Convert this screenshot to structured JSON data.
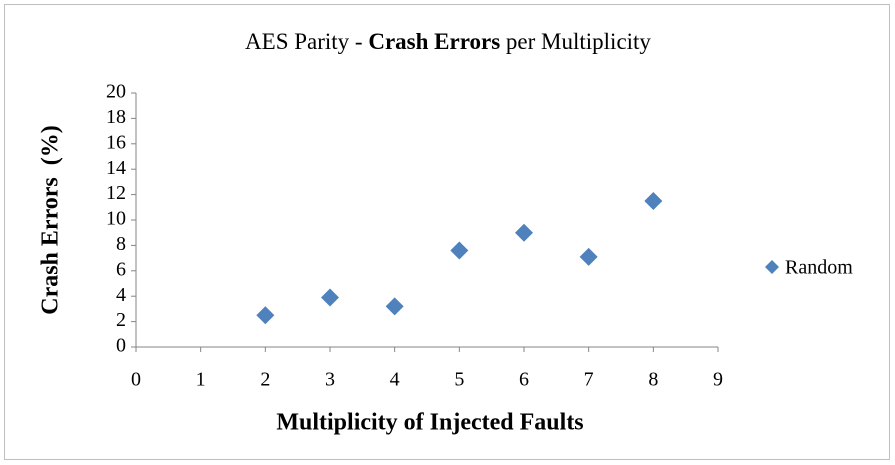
{
  "chart_data": {
    "type": "scatter",
    "title": [
      "AES Parity - ",
      "Crash Errors",
      " per Multiplicity"
    ],
    "x_label": "Multiplicity of Injected Faults",
    "y_label": "Crash Errors  (%)",
    "series": [
      {
        "name": "Random",
        "color": "#4f81bd",
        "x": [
          2,
          3,
          4,
          5,
          6,
          7,
          8
        ],
        "values": [
          2.5,
          3.9,
          3.2,
          7.6,
          9.0,
          7.1,
          11.5
        ]
      }
    ],
    "xlim": [
      0,
      9
    ],
    "xticks": [
      0,
      1,
      2,
      3,
      4,
      5,
      6,
      7,
      8,
      9
    ],
    "ylim": [
      0,
      20
    ],
    "yticks": [
      0,
      2,
      4,
      6,
      8,
      10,
      12,
      14,
      16,
      18,
      20
    ],
    "grid": false,
    "legend": "right"
  }
}
